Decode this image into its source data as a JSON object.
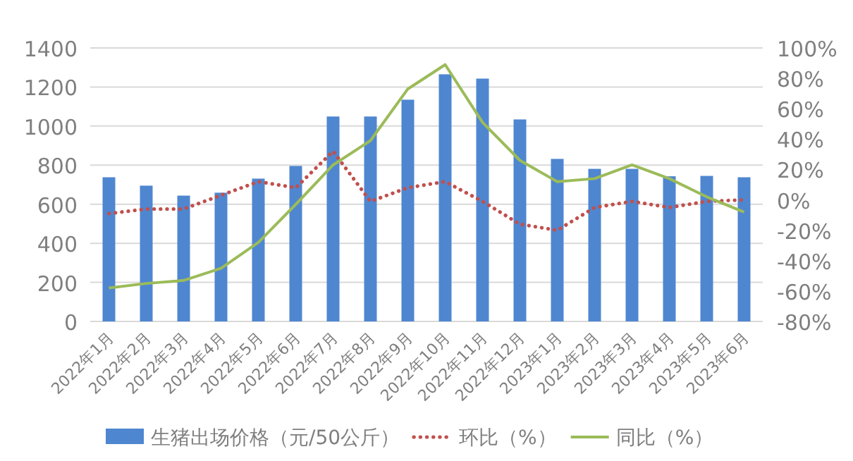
{
  "chart_data": {
    "type": "bar",
    "categories": [
      "2022年1月",
      "2022年2月",
      "2022年3月",
      "2022年4月",
      "2022年5月",
      "2022年6月",
      "2022年7月",
      "2022年8月",
      "2022年9月",
      "2022年10月",
      "2022年11月",
      "2022年12月",
      "2023年1月",
      "2023年2月",
      "2023年3月",
      "2023年4月",
      "2023年5月",
      "2023年6月"
    ],
    "series": [
      {
        "name": "生猪出场价格（元/50公斤）",
        "color": "#4f86d0",
        "values": [
          738,
          695,
          644,
          659,
          731,
          796,
          1049,
          1049,
          1135,
          1265,
          1243,
          1034,
          832,
          781,
          781,
          743,
          745,
          738
        ]
      },
      {
        "name": "环比（%）",
        "type": "line",
        "axis": "y2",
        "line_style": "dotted",
        "color": "#c0504d",
        "values": [
          -9,
          -6,
          -6,
          3,
          12,
          8,
          32,
          -1,
          8,
          12,
          -1,
          -16,
          -20,
          -5,
          -1,
          -5,
          -1,
          0
        ]
      },
      {
        "name": "同比（%）",
        "type": "line",
        "axis": "y2",
        "line_style": "solid",
        "color": "#9bbb59",
        "values": [
          -58,
          -55,
          -53,
          -45,
          -28,
          -3,
          23,
          39,
          73,
          89,
          51,
          26,
          12,
          14,
          23,
          14,
          2,
          -8
        ]
      }
    ],
    "ylim": [
      0,
      1400
    ],
    "yticks": [
      0,
      200,
      400,
      600,
      800,
      1000,
      1200,
      1400
    ],
    "y2lim": [
      -80,
      100
    ],
    "y2ticks": [
      {
        "value": -80,
        "label": "-80%"
      },
      {
        "value": -60,
        "label": "-60%"
      },
      {
        "value": -40,
        "label": "-40%"
      },
      {
        "value": -20,
        "label": "-20%"
      },
      {
        "value": 0,
        "label": "0%"
      },
      {
        "value": 20,
        "label": "20%"
      },
      {
        "value": 40,
        "label": "40%"
      },
      {
        "value": 60,
        "label": "60%"
      },
      {
        "value": 80,
        "label": "80%"
      },
      {
        "value": 100,
        "label": "100%"
      }
    ],
    "grid": "y",
    "legend": "bottom"
  }
}
